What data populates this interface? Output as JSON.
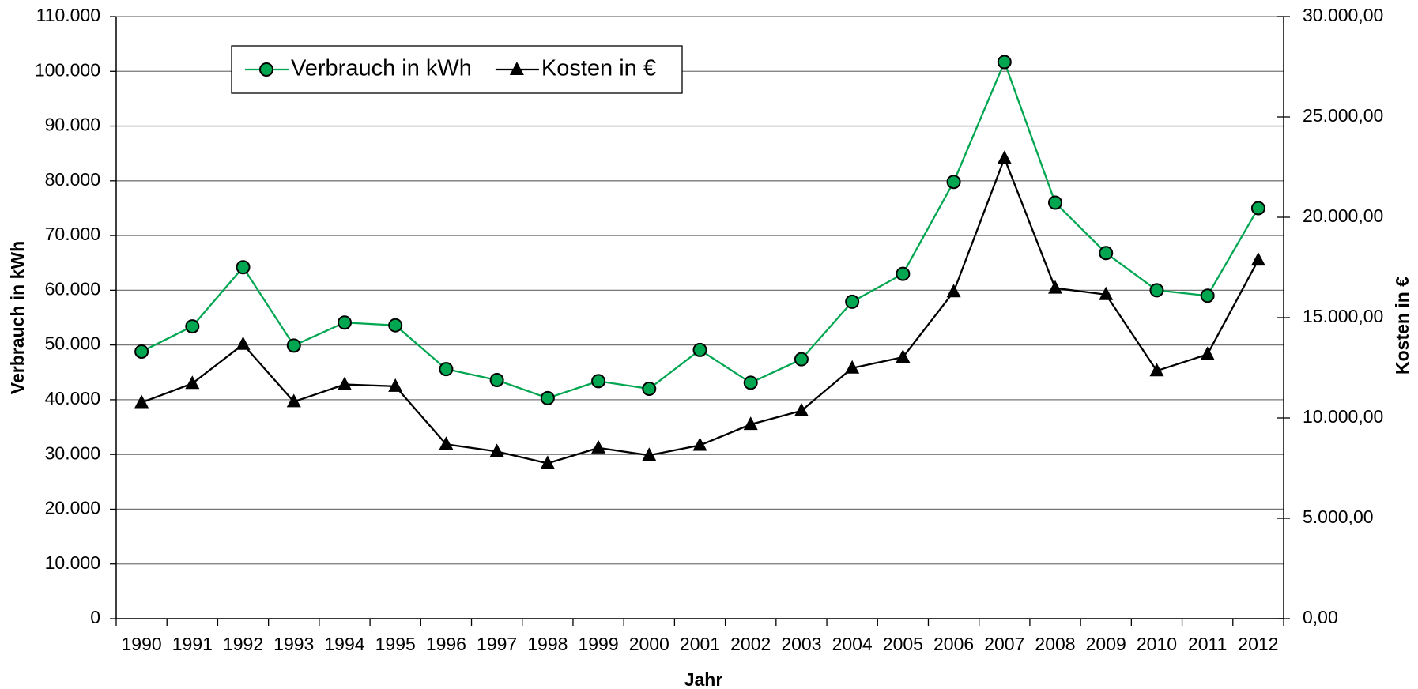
{
  "chart_data": {
    "type": "line",
    "categories": [
      "1990",
      "1991",
      "1992",
      "1993",
      "1994",
      "1995",
      "1996",
      "1997",
      "1998",
      "1999",
      "2000",
      "2001",
      "2002",
      "2003",
      "2004",
      "2005",
      "2006",
      "2007",
      "2008",
      "2009",
      "2010",
      "2011",
      "2012"
    ],
    "xlabel": "Jahr",
    "ylabel": "Verbrauch in kWh",
    "y2label": "Kosten in €",
    "series": [
      {
        "name": "Verbrauch in kWh",
        "color": "#00a650",
        "marker": "circle",
        "values": [
          48800,
          53400,
          64200,
          49900,
          54100,
          53600,
          45600,
          43600,
          40300,
          43400,
          42000,
          49100,
          43100,
          47400,
          57900,
          63000,
          79800,
          101700,
          76000,
          66800,
          60000,
          59000,
          75000
        ]
      },
      {
        "name": "Kosten in €",
        "color": "#000000",
        "marker": "triangle",
        "axis": "y2",
        "values": [
          10770,
          11720,
          13670,
          10810,
          11670,
          11580,
          8690,
          8330,
          7740,
          8510,
          8140,
          8640,
          9680,
          10360,
          12490,
          13030,
          16290,
          22940,
          16470,
          16150,
          12350,
          13170,
          17870
        ]
      }
    ],
    "ylim": [
      0,
      110000
    ],
    "yticks": [
      0,
      {
        "value": 10000,
        "label": "10.000"
      },
      {
        "value": 20000,
        "label": "20.000"
      },
      {
        "value": 30000,
        "label": "30.000"
      },
      {
        "value": 40000,
        "label": "40.000"
      },
      {
        "value": 50000,
        "label": "50.000"
      },
      {
        "value": 60000,
        "label": "60.000"
      },
      {
        "value": 70000,
        "label": "70.000"
      },
      {
        "value": 80000,
        "label": "80.000"
      },
      {
        "value": 90000,
        "label": "90.000"
      },
      {
        "value": 100000,
        "label": "100.000"
      },
      {
        "value": 110000,
        "label": "110.000"
      }
    ],
    "y2lim": [
      0,
      30000
    ],
    "y2ticks": [
      {
        "value": 0,
        "label": "0,00"
      },
      {
        "value": 5000,
        "label": "5.000,00"
      },
      {
        "value": 10000,
        "label": "10.000,00"
      },
      {
        "value": 15000,
        "label": "15.000,00"
      },
      {
        "value": 20000,
        "label": "20.000,00"
      },
      {
        "value": 25000,
        "label": "25.000,00"
      },
      {
        "value": 30000,
        "label": "30.000,00"
      }
    ],
    "grid": true,
    "legend": "upper left"
  }
}
